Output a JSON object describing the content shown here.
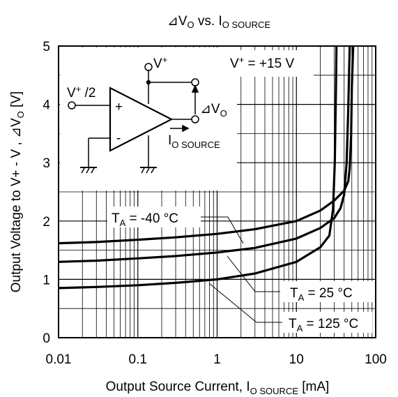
{
  "chart_data": {
    "type": "line",
    "title": {
      "delta": "⊿",
      "main": "V",
      "main_sub": "O",
      "mid": " vs. I",
      "sub": "O SOURCE"
    },
    "xlabel": {
      "pre": "Output Source Current, I",
      "sub": "O SOURCE",
      "post": " [mA]"
    },
    "ylabel": {
      "text": "Output Voltage to V+ - V , ⊿V",
      "sub": "O",
      "post": " [V]"
    },
    "x_scale": "log",
    "xlim": [
      0.01,
      100
    ],
    "ylim": [
      0,
      5
    ],
    "x_ticks": [
      {
        "value": 0.01,
        "label": "0.01"
      },
      {
        "value": 0.1,
        "label": "0.1"
      },
      {
        "value": 1,
        "label": "1"
      },
      {
        "value": 10,
        "label": "10"
      },
      {
        "value": 100,
        "label": "100"
      }
    ],
    "y_ticks": [
      {
        "value": 0,
        "label": "0"
      },
      {
        "value": 1,
        "label": "1"
      },
      {
        "value": 2,
        "label": "2"
      },
      {
        "value": 3,
        "label": "3"
      },
      {
        "value": 4,
        "label": "4"
      },
      {
        "value": 5,
        "label": "5"
      }
    ],
    "grid": true,
    "series": [
      {
        "name": "T_A = -40 °C",
        "label_main": "T",
        "label_sub": "A",
        "label_rest": " = -40 °C",
        "x": [
          0.01,
          0.03,
          0.1,
          0.3,
          1,
          3,
          10,
          20,
          30,
          40,
          45,
          47,
          49,
          50,
          52
        ],
        "y": [
          1.62,
          1.64,
          1.68,
          1.72,
          1.78,
          1.86,
          2.0,
          2.18,
          2.35,
          2.52,
          2.68,
          2.9,
          3.5,
          4.3,
          5.0
        ]
      },
      {
        "name": "T_A = 25 °C",
        "label_main": "T",
        "label_sub": "A",
        "label_rest": " = 25 °C",
        "x": [
          0.01,
          0.03,
          0.1,
          0.3,
          1,
          3,
          10,
          20,
          30,
          36,
          40,
          43,
          45,
          47
        ],
        "y": [
          1.3,
          1.32,
          1.36,
          1.4,
          1.46,
          1.54,
          1.7,
          1.88,
          2.05,
          2.22,
          2.45,
          3.0,
          3.9,
          5.0
        ]
      },
      {
        "name": "T_A = 125 °C",
        "label_main": "T",
        "label_sub": "A",
        "label_rest": " = 125 °C",
        "x": [
          0.01,
          0.03,
          0.1,
          0.3,
          1,
          3,
          10,
          20,
          26,
          29,
          30.5,
          31.5,
          32
        ],
        "y": [
          0.85,
          0.87,
          0.9,
          0.94,
          1.0,
          1.1,
          1.3,
          1.55,
          1.75,
          2.2,
          3.0,
          4.2,
          5.0
        ]
      }
    ],
    "annotations": {
      "supply": {
        "main": "V",
        "sup": "+",
        "rest": " = +15 V"
      },
      "inset": {
        "vplus": {
          "main": "V",
          "sup": "+"
        },
        "vhalf": {
          "main": "V",
          "sup": "+",
          "rest": " /2"
        },
        "plus": "+",
        "minus": "-",
        "dvo": {
          "delta": "⊿",
          "main": "V",
          "sub": "O"
        },
        "io": {
          "main": "I",
          "sub": "O SOURCE"
        }
      }
    }
  }
}
